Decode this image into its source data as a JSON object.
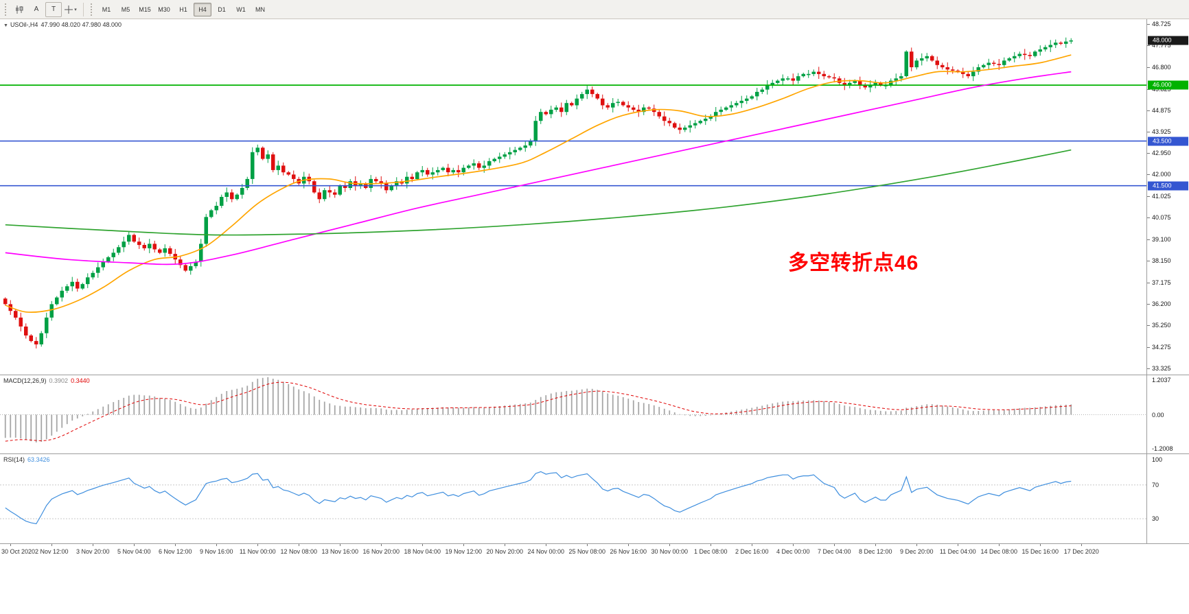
{
  "toolbar": {
    "tools": [
      {
        "name": "charts-tool",
        "label": ""
      },
      {
        "name": "cursor-tool",
        "label": "A"
      },
      {
        "name": "text-tool",
        "label": "T"
      },
      {
        "name": "crosshair-tool",
        "label": ""
      }
    ],
    "timeframes": [
      {
        "label": "M1",
        "active": false
      },
      {
        "label": "M5",
        "active": false
      },
      {
        "label": "M15",
        "active": false
      },
      {
        "label": "M30",
        "active": false
      },
      {
        "label": "H1",
        "active": false
      },
      {
        "label": "H4",
        "active": true
      },
      {
        "label": "D1",
        "active": false
      },
      {
        "label": "W1",
        "active": false
      },
      {
        "label": "MN",
        "active": false
      }
    ]
  },
  "chart": {
    "symbol_label": "USOil-,H4",
    "ohlc_label": "47.990 48.020 47.980 48.000",
    "annotation": {
      "text": "多空转折点46",
      "color": "#FF0000"
    },
    "scale": {
      "max": 48.95,
      "min": 33.05
    },
    "price_axis": {
      "labels": [
        "48.725",
        "47.775",
        "46.800",
        "45.825",
        "44.875",
        "43.925",
        "42.950",
        "42.000",
        "41.025",
        "40.075",
        "39.100",
        "38.150",
        "37.175",
        "36.200",
        "35.250",
        "34.275",
        "33.325"
      ],
      "badges": [
        {
          "text": "48.000",
          "price": 48.0,
          "bg": "#1a1a1a"
        },
        {
          "text": "46.000",
          "price": 46.0,
          "bg": "#00b200"
        },
        {
          "text": "43.500",
          "price": 43.5,
          "bg": "#3456d1"
        },
        {
          "text": "41.500",
          "price": 41.5,
          "bg": "#3456d1"
        }
      ]
    },
    "levels": [
      {
        "price": 46.0,
        "color": "#00b200"
      },
      {
        "price": 43.5,
        "color": "#3456d1"
      },
      {
        "price": 41.5,
        "color": "#3456d1"
      }
    ]
  },
  "colors": {
    "up": "#00a045",
    "down": "#df1010",
    "macd_hist": "#a6a6a6",
    "macd_signal": "#e00000",
    "rsi_line": "#3e8ede",
    "rsi_levels": "#c8c8c8"
  },
  "chart_data": {
    "type": "candlestick",
    "symbol": "USOil-",
    "timeframe": "H4",
    "title": "USOil-,H4 47.990 48.020 47.980 48.000",
    "ylim": [
      33.05,
      48.95
    ],
    "x_range": [
      "30 Oct 2020",
      "17 Dec 2020"
    ],
    "first_open": 36.45,
    "closes": [
      36.2,
      35.9,
      35.6,
      35.2,
      34.8,
      34.55,
      34.4,
      34.9,
      35.6,
      36.2,
      36.5,
      36.8,
      37.0,
      37.2,
      36.9,
      37.1,
      37.4,
      37.6,
      37.85,
      38.1,
      38.3,
      38.5,
      38.75,
      39.0,
      39.3,
      39.0,
      38.85,
      38.7,
      38.9,
      38.65,
      38.5,
      38.7,
      38.45,
      38.2,
      37.95,
      37.7,
      37.9,
      38.1,
      38.9,
      40.1,
      40.4,
      40.6,
      41.0,
      41.2,
      40.9,
      41.1,
      41.4,
      41.8,
      43.0,
      43.2,
      42.7,
      42.9,
      42.2,
      42.4,
      42.1,
      42.0,
      41.8,
      41.6,
      41.9,
      41.7,
      41.2,
      40.9,
      41.3,
      41.2,
      41.1,
      41.5,
      41.4,
      41.7,
      41.5,
      41.6,
      41.4,
      41.8,
      41.7,
      41.6,
      41.3,
      41.5,
      41.7,
      41.6,
      41.9,
      41.8,
      42.1,
      42.2,
      42.0,
      42.1,
      42.2,
      42.3,
      42.1,
      42.2,
      42.1,
      42.3,
      42.4,
      42.5,
      42.3,
      42.4,
      42.6,
      42.7,
      42.8,
      42.9,
      43.0,
      43.1,
      43.2,
      43.3,
      43.5,
      44.4,
      44.8,
      44.7,
      44.9,
      45.0,
      44.8,
      45.2,
      45.1,
      45.4,
      45.6,
      45.8,
      45.6,
      45.4,
      45.1,
      45.0,
      45.2,
      45.25,
      45.1,
      45.0,
      44.9,
      44.8,
      45.0,
      44.95,
      44.8,
      44.6,
      44.4,
      44.3,
      44.1,
      44.0,
      44.1,
      44.2,
      44.3,
      44.4,
      44.5,
      44.6,
      44.8,
      44.9,
      45.0,
      45.1,
      45.2,
      45.3,
      45.4,
      45.5,
      45.7,
      45.8,
      46.0,
      46.1,
      46.2,
      46.3,
      46.3,
      46.2,
      46.4,
      46.5,
      46.5,
      46.6,
      46.5,
      46.4,
      46.35,
      46.3,
      46.1,
      46.0,
      46.1,
      46.2,
      46.0,
      45.9,
      46.0,
      46.1,
      46.0,
      46.0,
      46.2,
      46.3,
      46.4,
      47.5,
      46.8,
      47.1,
      47.2,
      47.3,
      47.1,
      46.9,
      46.8,
      46.7,
      46.65,
      46.6,
      46.5,
      46.4,
      46.6,
      46.8,
      46.9,
      47.0,
      46.95,
      46.9,
      47.1,
      47.2,
      47.3,
      47.4,
      47.35,
      47.3,
      47.5,
      47.6,
      47.7,
      47.8,
      47.9,
      47.85,
      47.95,
      48.0
    ],
    "moving_averages": [
      {
        "name": "fast-ma",
        "color": "#ffa500",
        "points": [
          [
            0,
            36.15
          ],
          [
            4,
            35.85
          ],
          [
            9,
            35.95
          ],
          [
            14,
            36.35
          ],
          [
            19,
            36.95
          ],
          [
            24,
            37.7
          ],
          [
            29,
            38.2
          ],
          [
            34,
            38.35
          ],
          [
            39,
            38.8
          ],
          [
            44,
            39.7
          ],
          [
            49,
            40.7
          ],
          [
            54,
            41.4
          ],
          [
            58,
            41.75
          ],
          [
            63,
            41.8
          ],
          [
            68,
            41.6
          ],
          [
            76,
            41.65
          ],
          [
            84,
            41.9
          ],
          [
            92,
            42.15
          ],
          [
            100,
            42.5
          ],
          [
            105,
            43.0
          ],
          [
            110,
            43.6
          ],
          [
            115,
            44.2
          ],
          [
            120,
            44.65
          ],
          [
            126,
            44.9
          ],
          [
            131,
            44.85
          ],
          [
            136,
            44.6
          ],
          [
            141,
            44.7
          ],
          [
            146,
            45.0
          ],
          [
            151,
            45.4
          ],
          [
            156,
            45.85
          ],
          [
            161,
            46.15
          ],
          [
            166,
            46.2
          ],
          [
            171,
            46.1
          ],
          [
            176,
            46.35
          ],
          [
            181,
            46.6
          ],
          [
            186,
            46.6
          ],
          [
            191,
            46.7
          ],
          [
            196,
            46.85
          ],
          [
            201,
            47.0
          ],
          [
            207,
            47.35
          ]
        ]
      },
      {
        "name": "medium-ma",
        "color": "#ff00ff",
        "points": [
          [
            0,
            38.5
          ],
          [
            12,
            38.2
          ],
          [
            24,
            38.05
          ],
          [
            34,
            38.0
          ],
          [
            44,
            38.4
          ],
          [
            56,
            39.1
          ],
          [
            68,
            39.8
          ],
          [
            80,
            40.5
          ],
          [
            92,
            41.1
          ],
          [
            104,
            41.7
          ],
          [
            116,
            42.3
          ],
          [
            128,
            42.9
          ],
          [
            140,
            43.5
          ],
          [
            152,
            44.1
          ],
          [
            164,
            44.7
          ],
          [
            176,
            45.3
          ],
          [
            188,
            45.9
          ],
          [
            198,
            46.3
          ],
          [
            207,
            46.6
          ]
        ]
      },
      {
        "name": "slow-ma",
        "color": "#2fa32f",
        "points": [
          [
            0,
            39.75
          ],
          [
            20,
            39.5
          ],
          [
            40,
            39.3
          ],
          [
            60,
            39.35
          ],
          [
            80,
            39.5
          ],
          [
            100,
            39.75
          ],
          [
            120,
            40.1
          ],
          [
            140,
            40.55
          ],
          [
            160,
            41.15
          ],
          [
            180,
            41.9
          ],
          [
            195,
            42.55
          ],
          [
            207,
            43.1
          ]
        ]
      }
    ],
    "time_labels": [
      {
        "i": 1,
        "t": "30 Oct 2020"
      },
      {
        "i": 9,
        "t": "2 Nov 12:00"
      },
      {
        "i": 17,
        "t": "3 Nov 20:00"
      },
      {
        "i": 25,
        "t": "5 Nov 04:00"
      },
      {
        "i": 33,
        "t": "6 Nov 12:00"
      },
      {
        "i": 41,
        "t": "9 Nov 16:00"
      },
      {
        "i": 49,
        "t": "11 Nov 00:00"
      },
      {
        "i": 57,
        "t": "12 Nov 08:00"
      },
      {
        "i": 65,
        "t": "13 Nov 16:00"
      },
      {
        "i": 73,
        "t": "16 Nov 20:00"
      },
      {
        "i": 81,
        "t": "18 Nov 04:00"
      },
      {
        "i": 89,
        "t": "19 Nov 12:00"
      },
      {
        "i": 97,
        "t": "20 Nov 20:00"
      },
      {
        "i": 105,
        "t": "24 Nov 00:00"
      },
      {
        "i": 113,
        "t": "25 Nov 08:00"
      },
      {
        "i": 121,
        "t": "26 Nov 16:00"
      },
      {
        "i": 129,
        "t": "30 Nov 00:00"
      },
      {
        "i": 137,
        "t": "1 Dec 08:00"
      },
      {
        "i": 145,
        "t": "2 Dec 16:00"
      },
      {
        "i": 153,
        "t": "4 Dec 00:00"
      },
      {
        "i": 161,
        "t": "7 Dec 04:00"
      },
      {
        "i": 169,
        "t": "8 Dec 12:00"
      },
      {
        "i": 177,
        "t": "9 Dec 20:00"
      },
      {
        "i": 185,
        "t": "11 Dec 04:00"
      },
      {
        "i": 193,
        "t": "14 Dec 08:00"
      },
      {
        "i": 201,
        "t": "15 Dec 16:00"
      },
      {
        "i": 209,
        "t": "17 Dec 2020"
      }
    ],
    "macd": {
      "label": "MACD(12,26,9)",
      "value_main": "0.3902",
      "value_signal": "0.3440",
      "params": [
        12,
        26,
        9
      ],
      "axis": [
        "1.2037",
        "0.00",
        "-1.2008"
      ]
    },
    "rsi": {
      "label": "RSI(14)",
      "value": "63.3426",
      "period": 14,
      "levels": [
        70,
        30
      ],
      "axis": [
        "100",
        "70",
        "30"
      ]
    }
  }
}
